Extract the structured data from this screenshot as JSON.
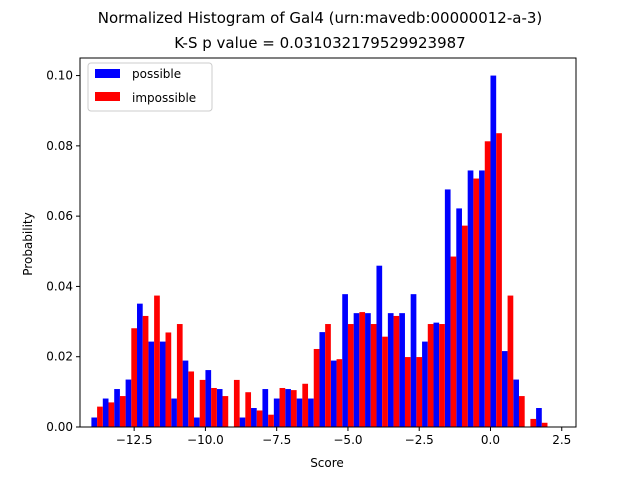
{
  "chart_data": {
    "type": "bar",
    "title": "Normalized Histogram of Gal4 (urn:mavedb:00000012-a-3)",
    "subtitle": "K-S p value = 0.031032179529923987",
    "xlabel": "Score",
    "ylabel": "Probability",
    "xlim": [
      -14.4,
      3.0
    ],
    "ylim": [
      0,
      0.105
    ],
    "xticks": [
      -12.5,
      -10.0,
      -7.5,
      -5.0,
      -2.5,
      0.0,
      2.5
    ],
    "xtick_labels": [
      "−12.5",
      "−10.0",
      "−7.5",
      "−5.0",
      "−2.5",
      "0.0",
      "2.5"
    ],
    "yticks": [
      0.0,
      0.02,
      0.04,
      0.06,
      0.08,
      0.1
    ],
    "ytick_labels": [
      "0.00",
      "0.02",
      "0.04",
      "0.06",
      "0.08",
      "0.10"
    ],
    "grid": false,
    "legend_position": "top-left",
    "bin_width": 0.4,
    "bin_starts": [
      -14.0,
      -13.6,
      -13.2,
      -12.8,
      -12.4,
      -12.0,
      -11.6,
      -11.2,
      -10.8,
      -10.4,
      -10.0,
      -9.6,
      -9.2,
      -8.8,
      -8.4,
      -8.0,
      -7.6,
      -7.2,
      -6.8,
      -6.4,
      -6.0,
      -5.6,
      -5.2,
      -4.8,
      -4.4,
      -4.0,
      -3.6,
      -3.2,
      -2.8,
      -2.4,
      -2.0,
      -1.6,
      -1.2,
      -0.8,
      -0.4,
      0.0,
      0.4,
      0.8,
      1.2,
      1.6,
      2.0
    ],
    "series": [
      {
        "name": "possible",
        "color": "#0000ff",
        "values": [
          0.0027,
          0.0081,
          0.0108,
          0.0135,
          0.0351,
          0.0243,
          0.0243,
          0.0081,
          0.0189,
          0.0027,
          0.0162,
          0.0108,
          0.0,
          0.0027,
          0.0054,
          0.0108,
          0.0081,
          0.0108,
          0.0081,
          0.0081,
          0.027,
          0.0189,
          0.0378,
          0.0324,
          0.0324,
          0.0459,
          0.0324,
          0.0324,
          0.0378,
          0.0243,
          0.0297,
          0.0676,
          0.0622,
          0.073,
          0.073,
          0.1,
          0.0216,
          0.0135,
          0.0,
          0.0054,
          0.0
        ]
      },
      {
        "name": "impossible",
        "color": "#ff0000",
        "values": [
          0.0058,
          0.007,
          0.0088,
          0.0281,
          0.0316,
          0.0374,
          0.0269,
          0.0293,
          0.0158,
          0.0134,
          0.0111,
          0.0088,
          0.0134,
          0.0099,
          0.0047,
          0.0035,
          0.0111,
          0.0105,
          0.0123,
          0.0222,
          0.0293,
          0.0193,
          0.0293,
          0.0327,
          0.0293,
          0.0257,
          0.0316,
          0.0199,
          0.0199,
          0.0293,
          0.0293,
          0.0485,
          0.0573,
          0.0707,
          0.0813,
          0.0836,
          0.0374,
          0.0088,
          0.0023,
          0.0012,
          0.0
        ]
      }
    ]
  }
}
